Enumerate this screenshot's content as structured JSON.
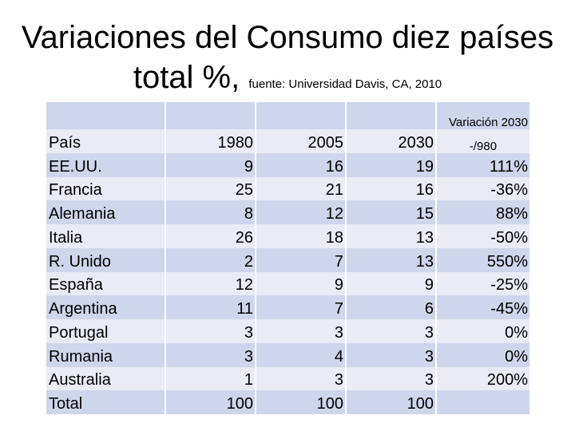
{
  "title": {
    "line1": "Variaciones del Consumo diez países",
    "line2_main": "total %,",
    "source": "fuente: Universidad Davis, CA, 2010"
  },
  "table": {
    "headers": {
      "country": "País",
      "y1980": "1980",
      "y2005": "2005",
      "y2030": "2030",
      "variation_line1": "Variación 2030",
      "variation_line2": "-/980"
    },
    "rows": [
      {
        "country": "EE.UU.",
        "y1980": "9",
        "y2005": "16",
        "y2030": "19",
        "variation": "111%"
      },
      {
        "country": "Francia",
        "y1980": "25",
        "y2005": "21",
        "y2030": "16",
        "variation": "-36%"
      },
      {
        "country": "Alemania",
        "y1980": "8",
        "y2005": "12",
        "y2030": "15",
        "variation": "88%"
      },
      {
        "country": "Italia",
        "y1980": "26",
        "y2005": "18",
        "y2030": "13",
        "variation": "-50%"
      },
      {
        "country": "R. Unido",
        "y1980": "2",
        "y2005": "7",
        "y2030": "13",
        "variation": "550%"
      },
      {
        "country": "España",
        "y1980": "12",
        "y2005": "9",
        "y2030": "9",
        "variation": "-25%"
      },
      {
        "country": "Argentina",
        "y1980": "11",
        "y2005": "7",
        "y2030": "6",
        "variation": "-45%"
      },
      {
        "country": "Portugal",
        "y1980": "3",
        "y2005": "3",
        "y2030": "3",
        "variation": "0%"
      },
      {
        "country": "Rumania",
        "y1980": "3",
        "y2005": "4",
        "y2030": "3",
        "variation": "0%"
      },
      {
        "country": "Australia",
        "y1980": "1",
        "y2005": "3",
        "y2030": "3",
        "variation": "200%"
      },
      {
        "country": "Total",
        "y1980": "100",
        "y2005": "100",
        "y2030": "100",
        "variation": ""
      }
    ]
  },
  "colors": {
    "row_light": "#e9ebf5",
    "row_dark": "#cfd5ea"
  }
}
